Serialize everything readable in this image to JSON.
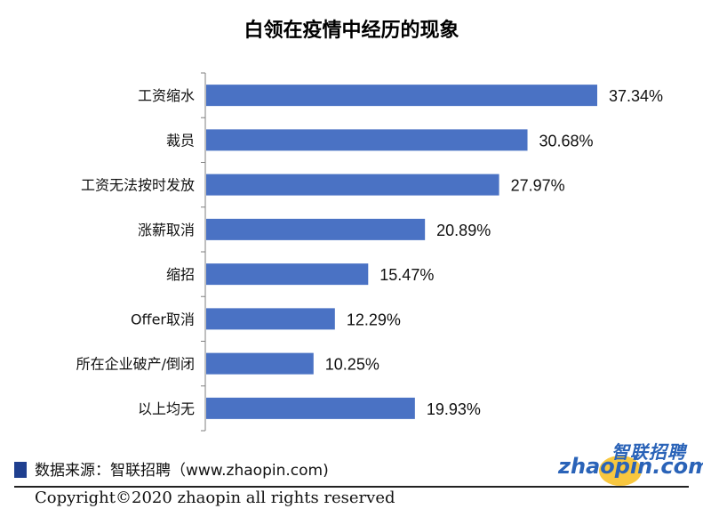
{
  "chart_data": {
    "type": "bar",
    "orientation": "horizontal",
    "title": "白领在疫情中经历的现象",
    "categories": [
      "工资缩水",
      "裁员",
      "工资无法按时发放",
      "涨薪取消",
      "缩招",
      "Offer取消",
      "所在企业破产/倒闭",
      "以上均无"
    ],
    "values": [
      37.34,
      30.68,
      27.97,
      20.89,
      15.47,
      12.29,
      10.25,
      19.93
    ],
    "data_labels": [
      "37.34%",
      "30.68%",
      "27.97%",
      "20.89%",
      "15.47%",
      "12.29%",
      "10.25%",
      "19.93%"
    ],
    "unit": "%",
    "xlim": [
      0,
      40
    ],
    "bar_color": "#4a72c4",
    "grid": false,
    "legend": "none"
  },
  "footer": {
    "source": "数据来源：智联招聘（www.zhaopin.com)",
    "copyright": "Copyright©2020 zhaopin all rights reserved"
  },
  "logo": {
    "cn": "智联招聘",
    "en": "zhaopin.com",
    "brand_color": "#2a63b8",
    "accent_color": "#f7c12a"
  }
}
